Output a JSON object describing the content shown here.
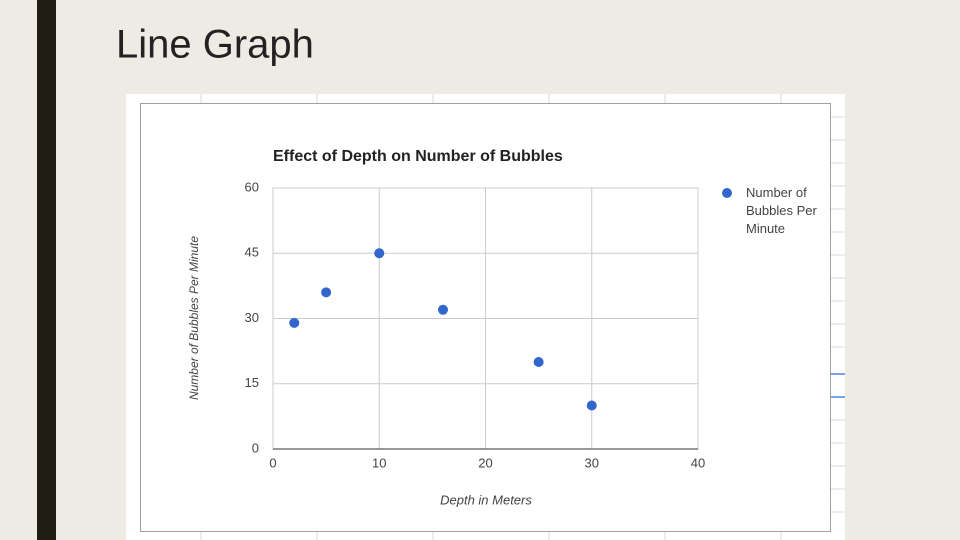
{
  "slide_title": "Line Graph",
  "chart_data": {
    "type": "scatter",
    "title": "Effect of Depth on Number of Bubbles",
    "x_label": "Depth in Meters",
    "y_label": "Number of Bubbles Per Minute",
    "series": [
      {
        "name": "Number of Bubbles Per Minute",
        "color": "#3366cc",
        "x": [
          2,
          5,
          10,
          16,
          25,
          30
        ],
        "values": [
          29,
          36,
          45,
          32,
          20,
          10
        ]
      }
    ],
    "xlim": [
      0,
      40
    ],
    "xticks": [
      0,
      10,
      20,
      30,
      40
    ],
    "ylim": [
      0,
      60
    ],
    "yticks": [
      0,
      15,
      30,
      45,
      60
    ],
    "grid": true,
    "legend": "right"
  }
}
